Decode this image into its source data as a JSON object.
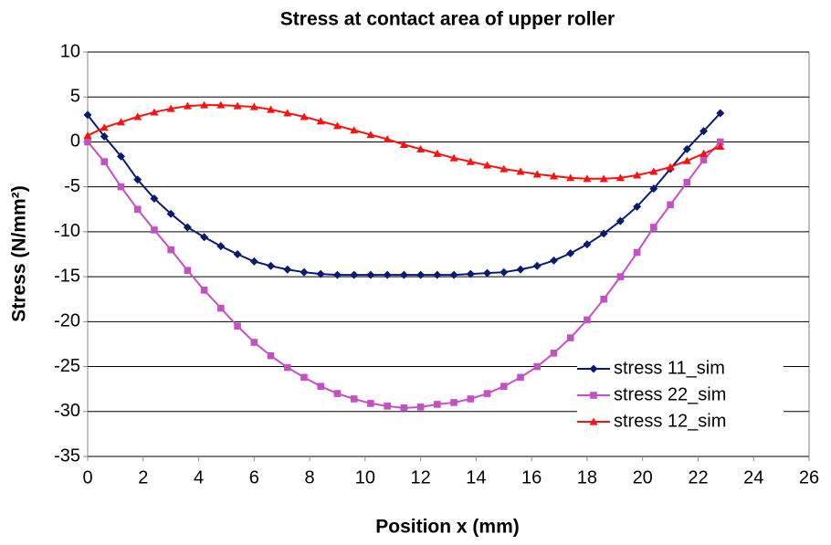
{
  "chart_data": {
    "type": "line",
    "title": "Stress at contact area of upper roller",
    "xlabel": "Position x (mm)",
    "ylabel": "Stress (N/mm²)",
    "x": [
      0,
      0.6,
      1.2,
      1.8,
      2.4,
      3.0,
      3.6,
      4.2,
      4.8,
      5.4,
      6.0,
      6.6,
      7.2,
      7.8,
      8.4,
      9.0,
      9.6,
      10.2,
      10.8,
      11.4,
      12.0,
      12.6,
      13.2,
      13.8,
      14.4,
      15.0,
      15.6,
      16.2,
      16.8,
      17.4,
      18.0,
      18.6,
      19.2,
      19.8,
      20.4,
      21.0,
      21.6,
      22.2,
      22.8
    ],
    "series": [
      {
        "name": "stress 11_sim",
        "color": "#0a1a6e",
        "marker": "diamond",
        "values": [
          3,
          0.6,
          -1.6,
          -4.2,
          -6.3,
          -8,
          -9.5,
          -10.6,
          -11.6,
          -12.5,
          -13.3,
          -13.8,
          -14.2,
          -14.5,
          -14.7,
          -14.8,
          -14.8,
          -14.8,
          -14.8,
          -14.8,
          -14.8,
          -14.8,
          -14.8,
          -14.7,
          -14.6,
          -14.5,
          -14.2,
          -13.8,
          -13.2,
          -12.4,
          -11.4,
          -10.2,
          -8.8,
          -7.2,
          -5.2,
          -3,
          -0.8,
          1.2,
          3.2
        ]
      },
      {
        "name": "stress 22_sim",
        "color": "#c450c4",
        "marker": "square",
        "values": [
          0,
          -2.2,
          -5,
          -7.5,
          -9.8,
          -12,
          -14.3,
          -16.5,
          -18.5,
          -20.5,
          -22.3,
          -23.8,
          -25.1,
          -26.2,
          -27.2,
          -28,
          -28.6,
          -29.1,
          -29.4,
          -29.6,
          -29.5,
          -29.2,
          -29,
          -28.6,
          -28,
          -27.2,
          -26.2,
          -25,
          -23.5,
          -21.8,
          -19.8,
          -17.5,
          -15,
          -12.3,
          -9.5,
          -7,
          -4.5,
          -2,
          0
        ]
      },
      {
        "name": "stress 12_sim",
        "color": "#ff1010",
        "marker": "triangle",
        "values": [
          0.7,
          1.6,
          2.2,
          2.8,
          3.3,
          3.7,
          4,
          4.1,
          4.1,
          4,
          3.9,
          3.6,
          3.2,
          2.8,
          2.3,
          1.8,
          1.3,
          0.8,
          0.3,
          -0.3,
          -0.8,
          -1.3,
          -1.8,
          -2.2,
          -2.6,
          -3,
          -3.3,
          -3.6,
          -3.8,
          -4,
          -4.1,
          -4.1,
          -4,
          -3.7,
          -3.3,
          -2.8,
          -2.1,
          -1.3,
          -0.5
        ]
      }
    ],
    "xlim": [
      0,
      26
    ],
    "xticks": [
      0,
      2,
      4,
      6,
      8,
      10,
      12,
      14,
      16,
      18,
      20,
      22,
      24,
      26
    ],
    "ylim": [
      -35,
      10
    ],
    "yticks": [
      -35,
      -30,
      -25,
      -20,
      -15,
      -10,
      -5,
      0,
      5,
      10
    ],
    "grid": true,
    "legend": "lower right"
  }
}
